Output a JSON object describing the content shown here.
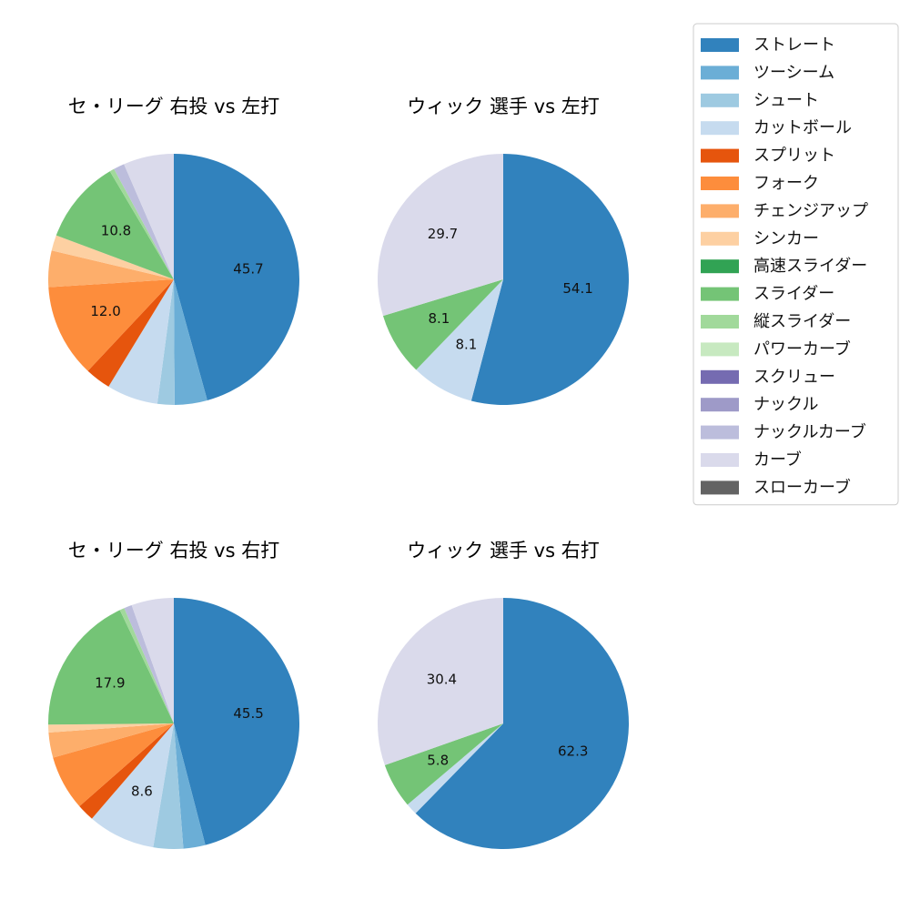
{
  "colors": {
    "ストレート": "#3182bd",
    "ツーシーム": "#6baed6",
    "シュート": "#9ecae1",
    "カットボール": "#c6dbef",
    "スプリット": "#e6550d",
    "フォーク": "#fd8d3c",
    "チェンジアップ": "#fdae6b",
    "シンカー": "#fdd0a2",
    "高速スライダー": "#31a354",
    "スライダー": "#74c476",
    "縦スライダー": "#a1d99b",
    "パワーカーブ": "#c7e9c0",
    "スクリュー": "#756bb1",
    "ナックル": "#9e9ac8",
    "ナックルカーブ": "#bcbddc",
    "カーブ": "#dadaeb",
    "スローカーブ": "#636363"
  },
  "chart_data": [
    {
      "type": "pie",
      "title": "セ・リーグ 右投 vs 左打",
      "slices": [
        {
          "label": "ストレート",
          "value": 45.7,
          "show_label": true
        },
        {
          "label": "ツーシーム",
          "value": 4.2,
          "show_label": false
        },
        {
          "label": "シュート",
          "value": 2.2,
          "show_label": false
        },
        {
          "label": "カットボール",
          "value": 6.6,
          "show_label": false
        },
        {
          "label": "スプリット",
          "value": 3.3,
          "show_label": false
        },
        {
          "label": "フォーク",
          "value": 12.0,
          "show_label": true
        },
        {
          "label": "チェンジアップ",
          "value": 4.7,
          "show_label": false
        },
        {
          "label": "シンカー",
          "value": 2.0,
          "show_label": false
        },
        {
          "label": "スライダー",
          "value": 10.8,
          "show_label": true
        },
        {
          "label": "縦スライダー",
          "value": 0.6,
          "show_label": false
        },
        {
          "label": "ナックルカーブ",
          "value": 1.4,
          "show_label": false
        },
        {
          "label": "カーブ",
          "value": 6.5,
          "show_label": false
        }
      ]
    },
    {
      "type": "pie",
      "title": "ウィック 選手 vs 左打",
      "slices": [
        {
          "label": "ストレート",
          "value": 54.1,
          "show_label": true
        },
        {
          "label": "カットボール",
          "value": 8.1,
          "show_label": true
        },
        {
          "label": "スライダー",
          "value": 8.1,
          "show_label": true
        },
        {
          "label": "カーブ",
          "value": 29.7,
          "show_label": true
        }
      ]
    },
    {
      "type": "pie",
      "title": "セ・リーグ 右投 vs 右打",
      "slices": [
        {
          "label": "ストレート",
          "value": 45.5,
          "show_label": true
        },
        {
          "label": "ツーシーム",
          "value": 2.8,
          "show_label": false
        },
        {
          "label": "シュート",
          "value": 3.8,
          "show_label": false
        },
        {
          "label": "カットボール",
          "value": 8.6,
          "show_label": true
        },
        {
          "label": "スプリット",
          "value": 2.2,
          "show_label": false
        },
        {
          "label": "フォーク",
          "value": 7.0,
          "show_label": false
        },
        {
          "label": "チェンジアップ",
          "value": 3.2,
          "show_label": false
        },
        {
          "label": "シンカー",
          "value": 1.0,
          "show_label": false
        },
        {
          "label": "スライダー",
          "value": 17.9,
          "show_label": true
        },
        {
          "label": "縦スライダー",
          "value": 0.6,
          "show_label": false
        },
        {
          "label": "ナックルカーブ",
          "value": 1.0,
          "show_label": false
        },
        {
          "label": "カーブ",
          "value": 5.4,
          "show_label": false
        }
      ]
    },
    {
      "type": "pie",
      "title": "ウィック 選手 vs 右打",
      "slices": [
        {
          "label": "ストレート",
          "value": 62.3,
          "show_label": true
        },
        {
          "label": "カットボール",
          "value": 1.5,
          "show_label": false
        },
        {
          "label": "スライダー",
          "value": 5.8,
          "show_label": true
        },
        {
          "label": "カーブ",
          "value": 30.4,
          "show_label": true
        }
      ]
    }
  ],
  "legend": {
    "placement": "top-right",
    "items": [
      "ストレート",
      "ツーシーム",
      "シュート",
      "カットボール",
      "スプリット",
      "フォーク",
      "チェンジアップ",
      "シンカー",
      "高速スライダー",
      "スライダー",
      "縦スライダー",
      "パワーカーブ",
      "スクリュー",
      "ナックル",
      "ナックルカーブ",
      "カーブ",
      "スローカーブ"
    ]
  }
}
